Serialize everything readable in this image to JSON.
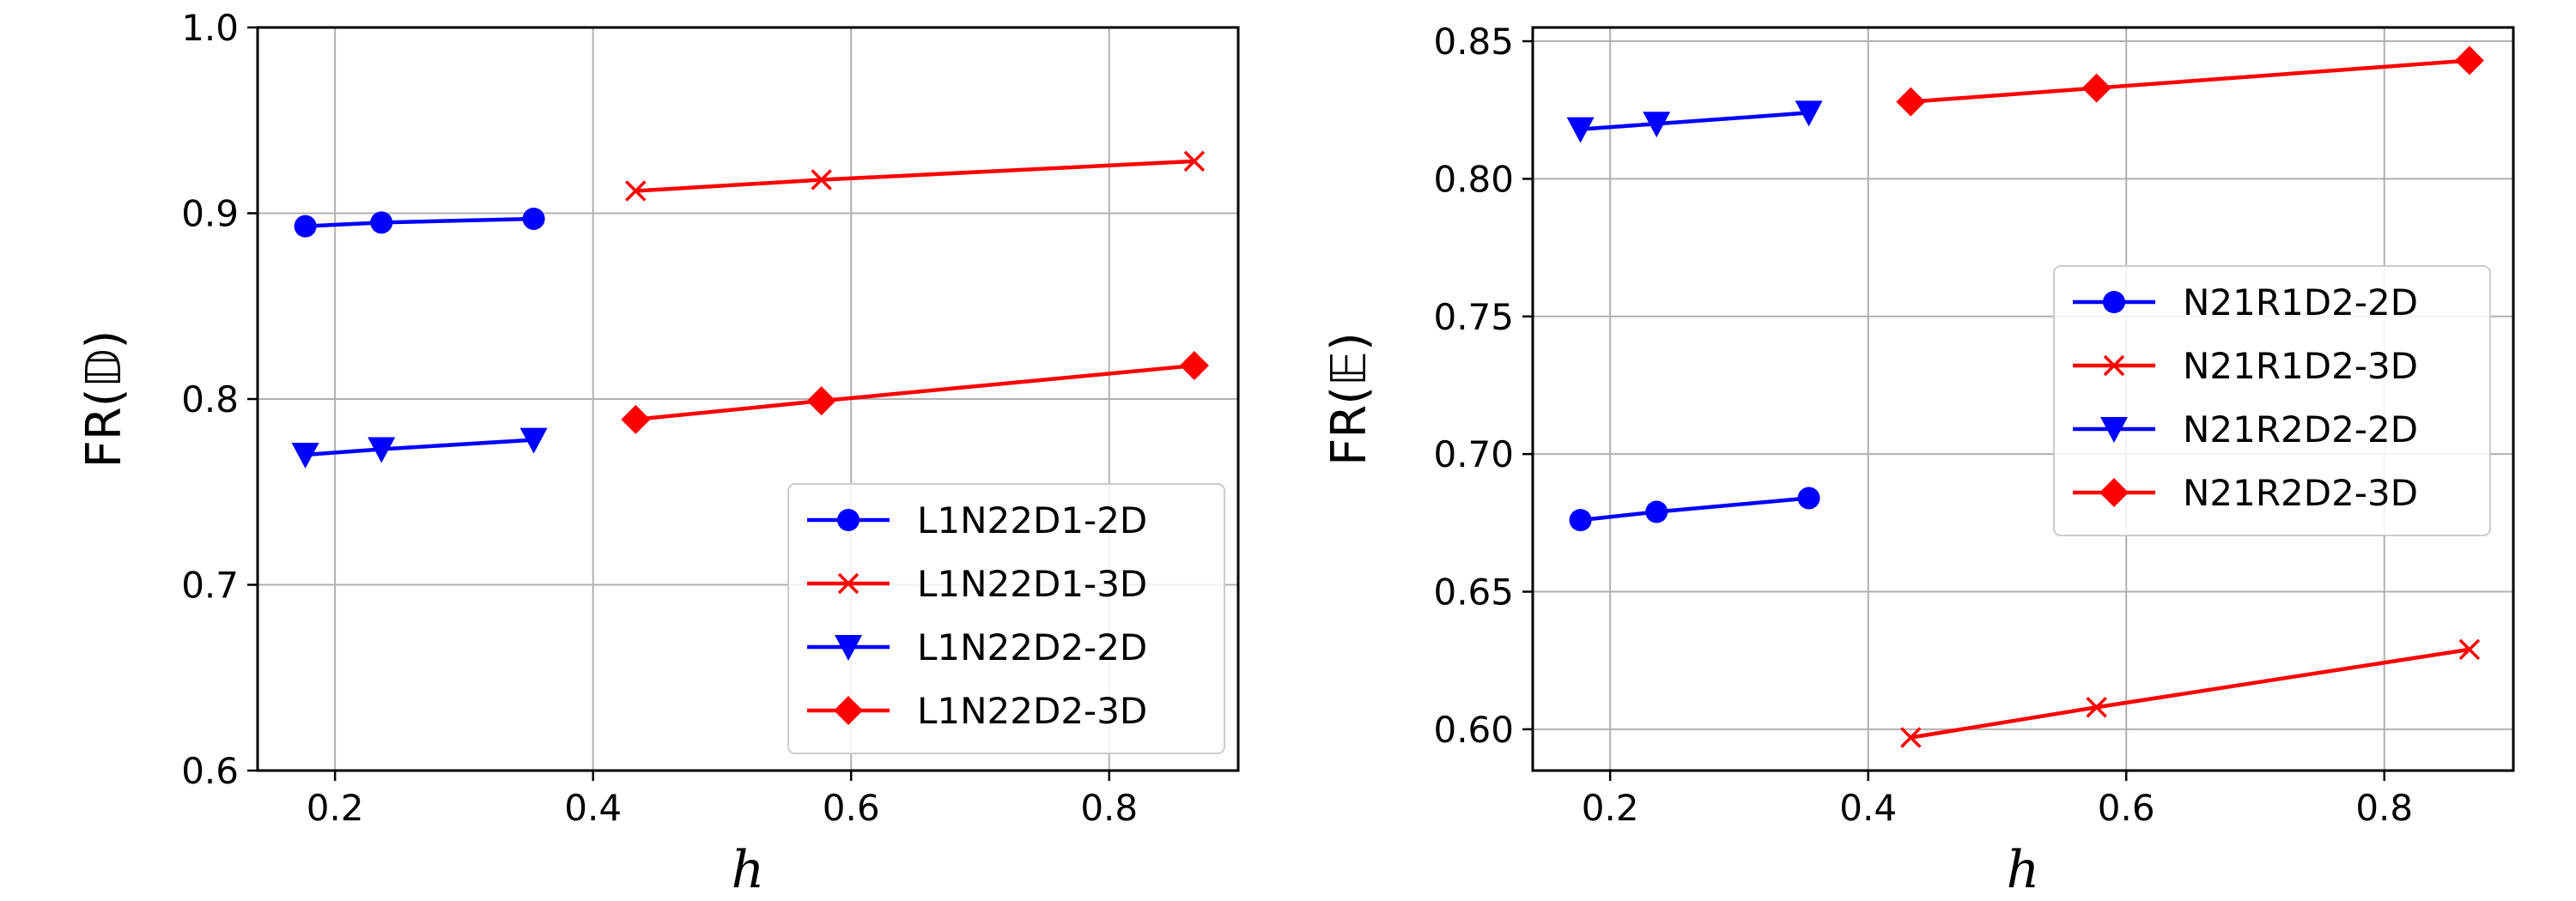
{
  "chart_data": [
    {
      "type": "line",
      "title": "",
      "xlabel": "h",
      "ylabel": "FR(𝔻)",
      "xlim": [
        0.14,
        0.9
      ],
      "ylim": [
        0.6,
        1.0
      ],
      "xticks": [
        0.2,
        0.4,
        0.6,
        0.8
      ],
      "yticks": [
        0.6,
        0.7,
        0.8,
        0.9,
        1.0
      ],
      "xtick_labels": [
        "0.2",
        "0.4",
        "0.6",
        "0.8"
      ],
      "ytick_labels": [
        "0.6",
        "0.7",
        "0.8",
        "0.9",
        "1.0"
      ],
      "grid": true,
      "legend_position": "lower-right",
      "series": [
        {
          "name": "L1N22D1-2D",
          "color": "#0000ff",
          "marker": "circle",
          "x": [
            0.177,
            0.236,
            0.354
          ],
          "y": [
            0.893,
            0.895,
            0.897
          ]
        },
        {
          "name": "L1N22D1-3D",
          "color": "#ff0000",
          "marker": "x",
          "x": [
            0.433,
            0.577,
            0.866
          ],
          "y": [
            0.912,
            0.918,
            0.928
          ]
        },
        {
          "name": "L1N22D2-2D",
          "color": "#0000ff",
          "marker": "triangle-down",
          "x": [
            0.177,
            0.236,
            0.354
          ],
          "y": [
            0.77,
            0.773,
            0.778
          ]
        },
        {
          "name": "L1N22D2-3D",
          "color": "#ff0000",
          "marker": "diamond",
          "x": [
            0.433,
            0.577,
            0.866
          ],
          "y": [
            0.789,
            0.799,
            0.818
          ]
        }
      ]
    },
    {
      "type": "line",
      "title": "",
      "xlabel": "h",
      "ylabel": "FR(𝔼)",
      "xlim": [
        0.14,
        0.9
      ],
      "ylim": [
        0.585,
        0.855
      ],
      "xticks": [
        0.2,
        0.4,
        0.6,
        0.8
      ],
      "yticks": [
        0.6,
        0.65,
        0.7,
        0.75,
        0.8,
        0.85
      ],
      "xtick_labels": [
        "0.2",
        "0.4",
        "0.6",
        "0.8"
      ],
      "ytick_labels": [
        "0.60",
        "0.65",
        "0.70",
        "0.75",
        "0.80",
        "0.85"
      ],
      "grid": true,
      "legend_position": "center-right",
      "series": [
        {
          "name": "N21R1D2-2D",
          "color": "#0000ff",
          "marker": "circle",
          "x": [
            0.177,
            0.236,
            0.354
          ],
          "y": [
            0.676,
            0.679,
            0.684
          ]
        },
        {
          "name": "N21R1D2-3D",
          "color": "#ff0000",
          "marker": "x",
          "x": [
            0.433,
            0.577,
            0.866
          ],
          "y": [
            0.597,
            0.608,
            0.629
          ]
        },
        {
          "name": "N21R2D2-2D",
          "color": "#0000ff",
          "marker": "triangle-down",
          "x": [
            0.177,
            0.236,
            0.354
          ],
          "y": [
            0.818,
            0.82,
            0.824
          ]
        },
        {
          "name": "N21R2D2-3D",
          "color": "#ff0000",
          "marker": "diamond",
          "x": [
            0.433,
            0.577,
            0.866
          ],
          "y": [
            0.828,
            0.833,
            0.843
          ]
        }
      ]
    }
  ]
}
